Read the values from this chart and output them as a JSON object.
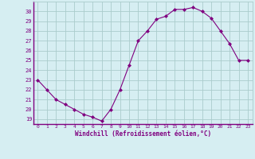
{
  "x": [
    0,
    1,
    2,
    3,
    4,
    5,
    6,
    7,
    8,
    9,
    10,
    11,
    12,
    13,
    14,
    15,
    16,
    17,
    18,
    19,
    20,
    21,
    22,
    23
  ],
  "y": [
    23,
    22,
    21,
    20.5,
    20,
    19.5,
    19.2,
    18.8,
    20,
    22,
    24.5,
    27,
    28,
    29.2,
    29.5,
    30.2,
    30.2,
    30.4,
    30,
    29.3,
    28,
    26.7,
    25,
    25
  ],
  "line_color": "#800080",
  "marker": "D",
  "marker_size": 2,
  "bg_color": "#d6eef2",
  "grid_color": "#aacccc",
  "xlabel": "Windchill (Refroidissement éolien,°C)",
  "xlabel_color": "#800080",
  "tick_color": "#800080",
  "spine_color": "#800080",
  "ylim": [
    18.5,
    31
  ],
  "xlim": [
    -0.5,
    23.5
  ],
  "yticks": [
    19,
    20,
    21,
    22,
    23,
    24,
    25,
    26,
    27,
    28,
    29,
    30
  ],
  "xticks": [
    0,
    1,
    2,
    3,
    4,
    5,
    6,
    7,
    8,
    9,
    10,
    11,
    12,
    13,
    14,
    15,
    16,
    17,
    18,
    19,
    20,
    21,
    22,
    23
  ]
}
